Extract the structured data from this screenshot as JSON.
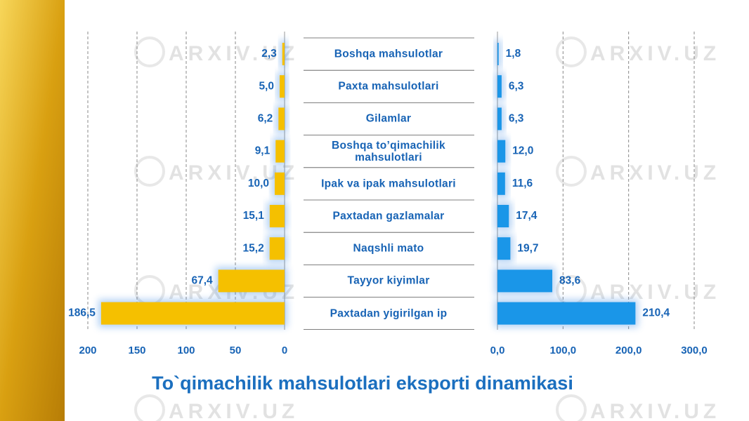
{
  "title": "To`qimachilik mahsulotlari eksporti dinamikasi",
  "watermark": "ARXIV.UZ",
  "chart_data": [
    {
      "type": "bar",
      "orientation": "horizontal",
      "categories": [
        "Boshqa mahsulotlar",
        "Paxta mahsulotlari",
        "Gilamlar",
        "Boshqa to’qimachilik mahsulotlari",
        "Ipak va ipak mahsulotlari",
        "Paxtadan gazlamalar",
        "Naqshli mato",
        "Tayyor kiyimlar",
        "Paxtadan yigirilgan ip"
      ],
      "values": [
        2.3,
        5.0,
        6.2,
        9.1,
        10.0,
        15.1,
        15.2,
        67.4,
        186.5
      ],
      "value_labels": [
        "2,3",
        "5,0",
        "6,2",
        "9,1",
        "10,0",
        "15,1",
        "15,2",
        "67,4",
        "186,5"
      ],
      "color": "#f5c000",
      "xlim": [
        200,
        0
      ],
      "xticks": [
        200,
        150,
        100,
        50,
        0
      ],
      "grid": true
    },
    {
      "type": "bar",
      "orientation": "horizontal",
      "values": [
        1.8,
        6.3,
        6.3,
        12.0,
        11.6,
        17.4,
        19.7,
        83.6,
        210.4
      ],
      "value_labels": [
        "1,8",
        "6,3",
        "6,3",
        "12,0",
        "11,6",
        "17,4",
        "19,7",
        "83,6",
        "210,4"
      ],
      "color": "#1a96e8",
      "xlim": [
        0,
        300
      ],
      "xticks": [
        {
          "value": 0,
          "label": "0,0"
        },
        {
          "value": 100,
          "label": "100,0"
        },
        {
          "value": 200,
          "label": "200,0"
        },
        {
          "value": 300,
          "label": "300,0"
        }
      ],
      "grid": true
    }
  ]
}
